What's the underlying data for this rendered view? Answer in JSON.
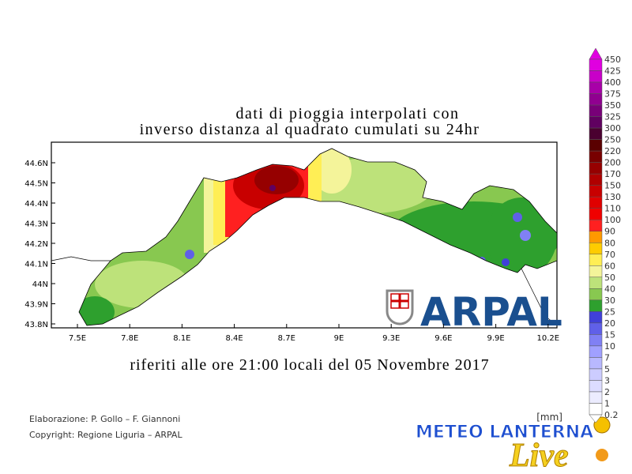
{
  "title": [
    "dati di pioggia interpolati con",
    "inverso distanza al quadrato cumulati su 24hr"
  ],
  "subtitle": "riferiti alle ore 21:00 locali del 05 Novembre 2017",
  "map": {
    "lat_ticks": [
      "44.6N",
      "44.5N",
      "44.4N",
      "44.3N",
      "44.2N",
      "44.1N",
      "44N",
      "43.9N",
      "43.8N"
    ],
    "lon_ticks": [
      "7.5E",
      "7.8E",
      "8.1E",
      "8.4E",
      "8.7E",
      "9E",
      "9.3E",
      "9.6E",
      "9.9E",
      "10.2E"
    ]
  },
  "legend": {
    "unit": "[mm]",
    "levels": [
      {
        "label": "450",
        "color": "#e000e0"
      },
      {
        "label": "425",
        "color": "#c800c8"
      },
      {
        "label": "400",
        "color": "#a800a8"
      },
      {
        "label": "375",
        "color": "#900090"
      },
      {
        "label": "350",
        "color": "#780078"
      },
      {
        "label": "325",
        "color": "#600060"
      },
      {
        "label": "300",
        "color": "#4a0030"
      },
      {
        "label": "250",
        "color": "#5a0000"
      },
      {
        "label": "220",
        "color": "#780000"
      },
      {
        "label": "200",
        "color": "#960000"
      },
      {
        "label": "170",
        "color": "#b00000"
      },
      {
        "label": "150",
        "color": "#c80000"
      },
      {
        "label": "130",
        "color": "#e00000"
      },
      {
        "label": "110",
        "color": "#f00000"
      },
      {
        "label": "100",
        "color": "#ff2020"
      },
      {
        "label": "90",
        "color": "#ff9900"
      },
      {
        "label": "80",
        "color": "#ffcc00"
      },
      {
        "label": "70",
        "color": "#ffee55"
      },
      {
        "label": "60",
        "color": "#f4f49a"
      },
      {
        "label": "50",
        "color": "#bde27a"
      },
      {
        "label": "40",
        "color": "#88c850"
      },
      {
        "label": "30",
        "color": "#2ea02e"
      },
      {
        "label": "25",
        "color": "#4040d8"
      },
      {
        "label": "20",
        "color": "#6060e8"
      },
      {
        "label": "15",
        "color": "#8080f4"
      },
      {
        "label": "10",
        "color": "#a0a0ff"
      },
      {
        "label": "7",
        "color": "#b8b8ff"
      },
      {
        "label": "5",
        "color": "#ccccff"
      },
      {
        "label": "3",
        "color": "#dcdcff"
      },
      {
        "label": "2",
        "color": "#ececff"
      },
      {
        "label": "1",
        "color": "#ffffff"
      },
      {
        "label": "0.2",
        "color": "#ffffff"
      }
    ]
  },
  "credits": [
    "Elaborazione: P. Gollo – F. Giannoni",
    "Copyright: Regione Liguria – ARPAL"
  ],
  "logo": "ARPAL",
  "watermark": [
    "METEO LANTERNA",
    "Live"
  ]
}
